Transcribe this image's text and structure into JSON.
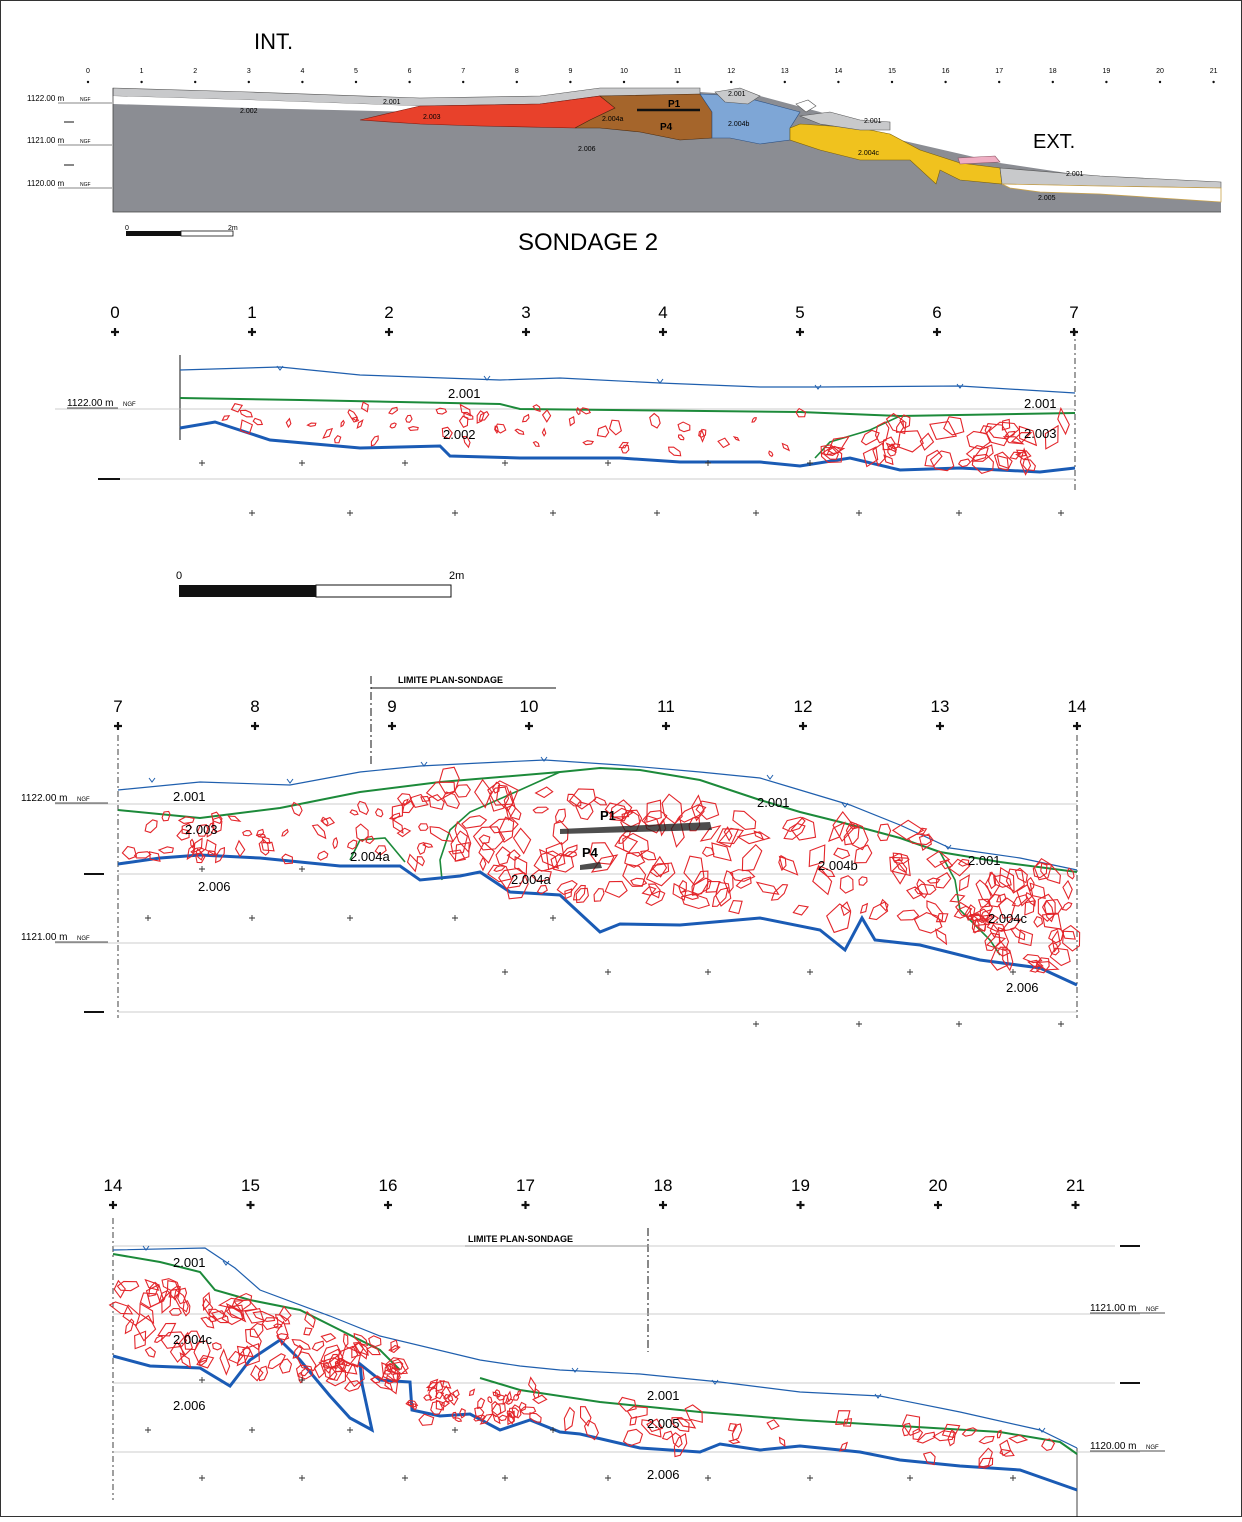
{
  "overview": {
    "int_label": "INT.",
    "ext_label": "EXT.",
    "title": "SONDAGE 2",
    "scale": {
      "start": "0",
      "end": "2m"
    },
    "elevations": [
      {
        "value": "1122.00 m",
        "unit": "NGF"
      },
      {
        "value": "1121.00 m",
        "unit": "NGF"
      },
      {
        "value": "1120.00 m",
        "unit": "NGF"
      }
    ],
    "ticks": [
      "0",
      "1",
      "2",
      "3",
      "4",
      "5",
      "6",
      "7",
      "8",
      "9",
      "10",
      "11",
      "12",
      "13",
      "14",
      "15",
      "16",
      "17",
      "18",
      "19",
      "20",
      "21"
    ],
    "layer_labels": [
      "2.001",
      "2.002",
      "2.003",
      "2.004a",
      "2.004b",
      "2.004c",
      "2.005",
      "2.006",
      "2.001",
      "2.001"
    ],
    "markers": [
      "P1",
      "P4"
    ],
    "colors": {
      "layer_2001": "#c8c9cb",
      "layer_2003": "#e8412b",
      "layer_2004a": "#a5652b",
      "layer_2004b": "#7ea6d6",
      "layer_2004c": "#f0c21e",
      "layer_2005": "#ffffff",
      "layer_2006": "#8b8d93",
      "pink": "#efaec3"
    }
  },
  "panel1": {
    "ticks": [
      "0",
      "1",
      "2",
      "3",
      "4",
      "5",
      "6",
      "7"
    ],
    "elevation": {
      "value": "1122.00 m",
      "unit": "NGF"
    },
    "labels": [
      "2.001",
      "2.002",
      "2.001",
      "2.003"
    ],
    "scale": {
      "start": "0",
      "end": "2m"
    }
  },
  "panel2": {
    "ticks": [
      "7",
      "8",
      "9",
      "10",
      "11",
      "12",
      "13",
      "14"
    ],
    "limite": "LIMITE PLAN-SONDAGE",
    "elevations": [
      {
        "value": "1122.00 m",
        "unit": "NGF"
      },
      {
        "value": "1121.00 m",
        "unit": "NGF"
      }
    ],
    "labels": [
      "2.001",
      "2.003",
      "2.004a",
      "2.006",
      "2.004a",
      "2.001",
      "2.004b",
      "2.001",
      "2.004c",
      "2.006"
    ],
    "markers": [
      "P1",
      "P4"
    ]
  },
  "panel3": {
    "ticks": [
      "14",
      "15",
      "16",
      "17",
      "18",
      "19",
      "20",
      "21"
    ],
    "limite": "LIMITE PLAN-SONDAGE",
    "elevations": [
      {
        "value": "1121.00 m",
        "unit": "NGF"
      },
      {
        "value": "1120.00 m",
        "unit": "NGF"
      }
    ],
    "labels": [
      "2.001",
      "2.004c",
      "2.006",
      "2.001",
      "2.005",
      "2.006"
    ]
  },
  "line_colors": {
    "surface": "#1f5fae",
    "interface": "#1c8a3a",
    "base": "#1a5bb5",
    "stones": "#e3262b"
  }
}
